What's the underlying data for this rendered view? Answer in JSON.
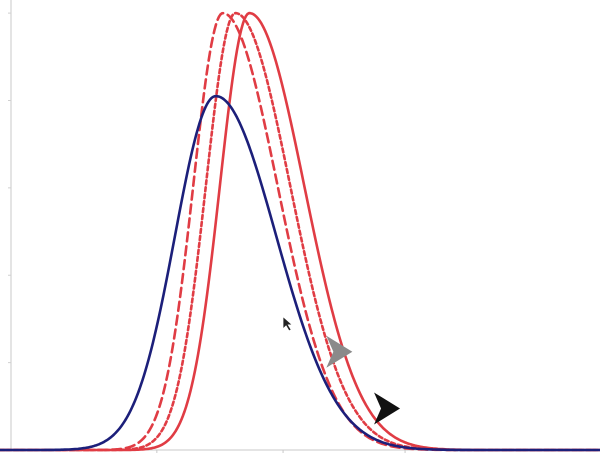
{
  "chart_data": {
    "type": "line",
    "title": "",
    "xlabel": "",
    "ylabel": "",
    "grid": false,
    "legend": "none",
    "xlim": [
      -2,
      40
    ],
    "ylim": [
      0,
      1.03
    ],
    "x_minor_ticks": [
      8.4,
      17.4,
      26.1
    ],
    "y_minor_ticks": [
      0.2,
      0.4,
      0.6,
      0.8,
      1.0
    ],
    "series": [
      {
        "color": "#1c1f7a",
        "style": "solid",
        "peak_x": 12.6,
        "peak_y": 0.81,
        "sigma_left": 2.9,
        "sigma_right": 4.3,
        "x": [
          0,
          4,
          6,
          8,
          10,
          12.6,
          15,
          17,
          20,
          23,
          26,
          30,
          40
        ],
        "y": [
          0,
          0.01,
          0.08,
          0.32,
          0.62,
          0.81,
          0.67,
          0.51,
          0.26,
          0.12,
          0.05,
          0.01,
          0
        ]
      },
      {
        "color": "#e03c44",
        "style": "dashed",
        "peak_x": 13.1,
        "peak_y": 1.0,
        "sigma_left": 2.1,
        "sigma_right": 3.9,
        "x": [
          0,
          6,
          8,
          10,
          12,
          13.1,
          15,
          17,
          19,
          21,
          23,
          26,
          40
        ],
        "y": [
          0,
          0.01,
          0.05,
          0.33,
          0.85,
          1.0,
          0.84,
          0.56,
          0.3,
          0.14,
          0.06,
          0.01,
          0
        ]
      },
      {
        "color": "#e03c44",
        "style": "dotted",
        "peak_x": 14.0,
        "peak_y": 1.0,
        "sigma_left": 2.1,
        "sigma_right": 3.9,
        "x": [
          0,
          6,
          8,
          10,
          12,
          14.0,
          16,
          18,
          20,
          22,
          24,
          27,
          40
        ],
        "y": [
          0,
          0.0,
          0.02,
          0.17,
          0.64,
          1.0,
          0.86,
          0.58,
          0.32,
          0.15,
          0.06,
          0.01,
          0
        ]
      },
      {
        "color": "#e03c44",
        "style": "solid",
        "peak_x": 15.0,
        "peak_y": 1.0,
        "sigma_left": 2.1,
        "sigma_right": 3.9,
        "x": [
          0,
          8,
          10,
          12,
          13,
          15.0,
          17,
          19,
          21,
          23,
          25,
          28,
          40
        ],
        "y": [
          0,
          0.0,
          0.06,
          0.36,
          0.64,
          1.0,
          0.88,
          0.6,
          0.33,
          0.16,
          0.07,
          0.01,
          0
        ]
      }
    ],
    "annotations": [
      {
        "kind": "arrowhead",
        "color": "#8a8a8a",
        "x": 21.2,
        "y": 0.225,
        "direction": "right"
      },
      {
        "kind": "arrowhead",
        "color": "#111111",
        "x": 24.6,
        "y": 0.095,
        "direction": "right"
      },
      {
        "kind": "cursor",
        "color": "#222222",
        "x": 17.4,
        "y": 0.305
      }
    ]
  }
}
